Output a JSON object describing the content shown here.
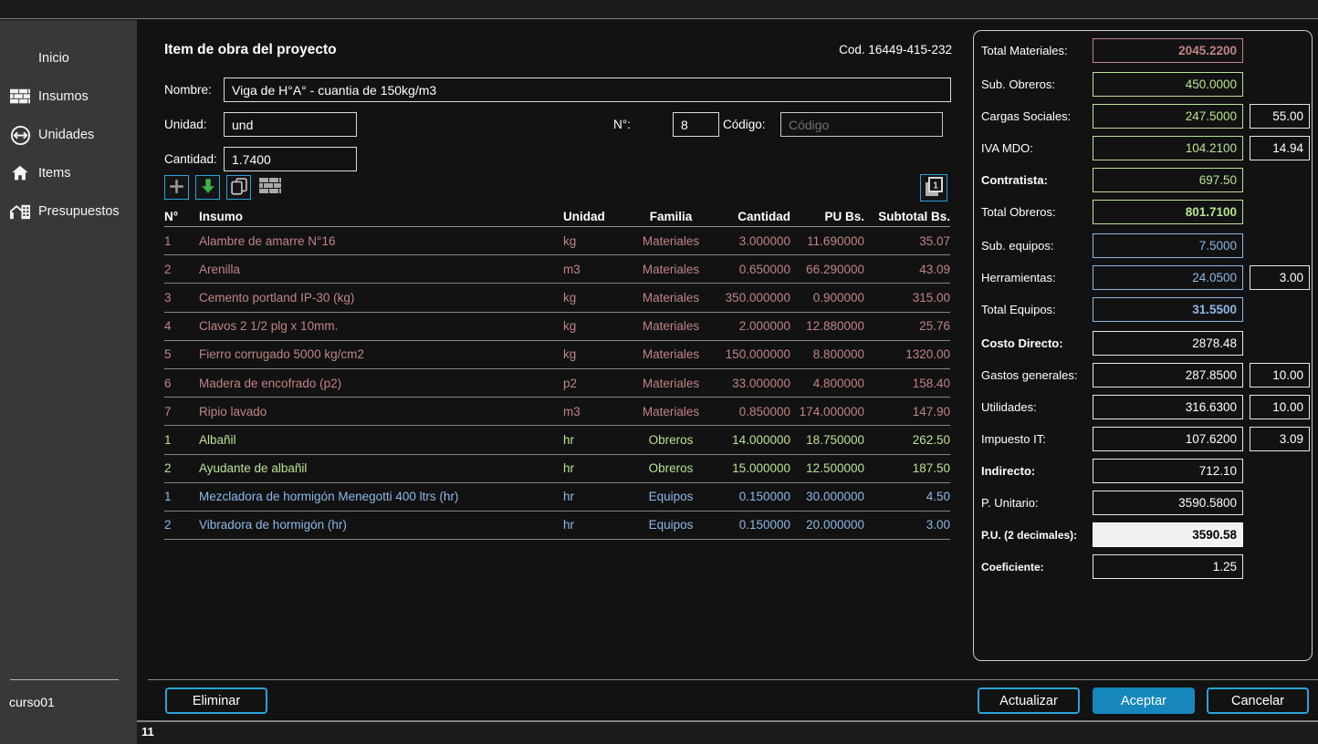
{
  "header": {
    "title": "Item de obra del proyecto",
    "code": "Cod. 16449-415-232"
  },
  "sidebar": {
    "items": [
      {
        "label": "Inicio",
        "icon": "none"
      },
      {
        "label": "Insumos",
        "icon": "bricks-icon"
      },
      {
        "label": "Unidades",
        "icon": "circle-arrows-icon"
      },
      {
        "label": "Items",
        "icon": "house-icon"
      },
      {
        "label": "Presupuestos",
        "icon": "buildings-icon"
      }
    ],
    "footer": "curso01"
  },
  "form": {
    "nombre_label": "Nombre:",
    "nombre_value": "Viga de H°A° - cuantia de 150kg/m3",
    "unidad_label": "Unidad:",
    "unidad_value": "und",
    "numero_label": "N°:",
    "numero_value": "8",
    "codigo_label": "Código:",
    "codigo_placeholder": "Código",
    "cantidad_label": "Cantidad:",
    "cantidad_value": "1.7400"
  },
  "toolbar": {
    "icons": [
      "add-icon",
      "insert-down-icon",
      "copy-icon",
      "bricks-icon"
    ],
    "page_icon": "copy-single-icon",
    "page_icon_label": "1"
  },
  "table": {
    "headers": [
      "N°",
      "Insumo",
      "Unidad",
      "Familia",
      "Cantidad",
      "PU Bs.",
      "Subtotal Bs."
    ],
    "rows": [
      {
        "n": "1",
        "insumo": "Alambre de amarre N°16",
        "unidad": "kg",
        "familia": "Materiales",
        "cantidad": "3.000000",
        "pu": "11.690000",
        "subtotal": "35.07"
      },
      {
        "n": "2",
        "insumo": "Arenilla",
        "unidad": "m3",
        "familia": "Materiales",
        "cantidad": "0.650000",
        "pu": "66.290000",
        "subtotal": "43.09"
      },
      {
        "n": "3",
        "insumo": "Cemento portland IP-30 (kg)",
        "unidad": "kg",
        "familia": "Materiales",
        "cantidad": "350.000000",
        "pu": "0.900000",
        "subtotal": "315.00"
      },
      {
        "n": "4",
        "insumo": "Clavos 2 1/2 plg x 10mm.",
        "unidad": "kg",
        "familia": "Materiales",
        "cantidad": "2.000000",
        "pu": "12.880000",
        "subtotal": "25.76"
      },
      {
        "n": "5",
        "insumo": "Fierro corrugado 5000 kg/cm2",
        "unidad": "kg",
        "familia": "Materiales",
        "cantidad": "150.000000",
        "pu": "8.800000",
        "subtotal": "1320.00"
      },
      {
        "n": "6",
        "insumo": "Madera de encofrado (p2)",
        "unidad": "p2",
        "familia": "Materiales",
        "cantidad": "33.000000",
        "pu": "4.800000",
        "subtotal": "158.40"
      },
      {
        "n": "7",
        "insumo": "Ripio lavado",
        "unidad": "m3",
        "familia": "Materiales",
        "cantidad": "0.850000",
        "pu": "174.000000",
        "subtotal": "147.90"
      },
      {
        "n": "1",
        "insumo": "Albañil",
        "unidad": "hr",
        "familia": "Obreros",
        "cantidad": "14.000000",
        "pu": "18.750000",
        "subtotal": "262.50"
      },
      {
        "n": "2",
        "insumo": "Ayudante de albañil",
        "unidad": "hr",
        "familia": "Obreros",
        "cantidad": "15.000000",
        "pu": "12.500000",
        "subtotal": "187.50"
      },
      {
        "n": "1",
        "insumo": "Mezcladora de hormigón Menegotti 400 ltrs (hr)",
        "unidad": "hr",
        "familia": "Equipos",
        "cantidad": "0.150000",
        "pu": "30.000000",
        "subtotal": "4.50"
      },
      {
        "n": "2",
        "insumo": "Vibradora de hormigón (hr)",
        "unidad": "hr",
        "familia": "Equipos",
        "cantidad": "0.150000",
        "pu": "20.000000",
        "subtotal": "3.00"
      }
    ]
  },
  "summary": {
    "rows": [
      {
        "label": "Total Materiales:",
        "value": "2045.2200",
        "color": "materials",
        "bold_value": true
      },
      {
        "label": "Sub. Obreros:",
        "value": "450.0000",
        "color": "labor",
        "gap": true
      },
      {
        "label": "Cargas Sociales:",
        "value": "247.5000",
        "color": "labor",
        "side": "55.00"
      },
      {
        "label": "IVA MDO:",
        "value": "104.2100",
        "color": "labor",
        "side": "14.94"
      },
      {
        "label": "Contratista:",
        "value": "697.50",
        "color": "labor",
        "bold_label": true
      },
      {
        "label": "Total Obreros:",
        "value": "801.7100",
        "color": "labor",
        "bold_value": true
      },
      {
        "label": "Sub. equipos:",
        "value": "7.5000",
        "color": "equipment",
        "gap": true
      },
      {
        "label": "Herramientas:",
        "value": "24.0500",
        "color": "equipment",
        "side": "3.00"
      },
      {
        "label": "Total Equipos:",
        "value": "31.5500",
        "color": "equipment",
        "bold_value": true
      },
      {
        "label": "Costo Directo:",
        "value": "2878.48",
        "color": "white",
        "bold_label": true,
        "gap": true
      },
      {
        "label": "Gastos generales:",
        "value": "287.8500",
        "color": "white",
        "side": "10.00"
      },
      {
        "label": "Utilidades:",
        "value": "316.6300",
        "color": "white",
        "side": "10.00"
      },
      {
        "label": "Impuesto IT:",
        "value": "107.6200",
        "color": "white",
        "side": "3.09"
      },
      {
        "label": "Indirecto:",
        "value": "712.10",
        "color": "white",
        "bold_label": true
      },
      {
        "label": "P. Unitario:",
        "value": "3590.5800",
        "color": "white"
      },
      {
        "label": "P.U. (2 decimales):",
        "value": "3590.58",
        "color": "highlight",
        "bold_label": true,
        "small_label": true
      },
      {
        "label": "Coeficiente:",
        "value": "1.25",
        "color": "white",
        "bold_label": true,
        "small_label": true
      }
    ]
  },
  "buttons": {
    "eliminar": "Eliminar",
    "actualizar": "Actualizar",
    "aceptar": "Aceptar",
    "cancelar": "Cancelar"
  },
  "statusbar": {
    "count": "11"
  },
  "colors": {
    "accent": "#2aa2d8",
    "accent-fill": "#1787bb",
    "materials": "#c08484",
    "labor": "#b9e294",
    "equipment": "#8cb9e6",
    "panel-border": "#cccccc"
  }
}
